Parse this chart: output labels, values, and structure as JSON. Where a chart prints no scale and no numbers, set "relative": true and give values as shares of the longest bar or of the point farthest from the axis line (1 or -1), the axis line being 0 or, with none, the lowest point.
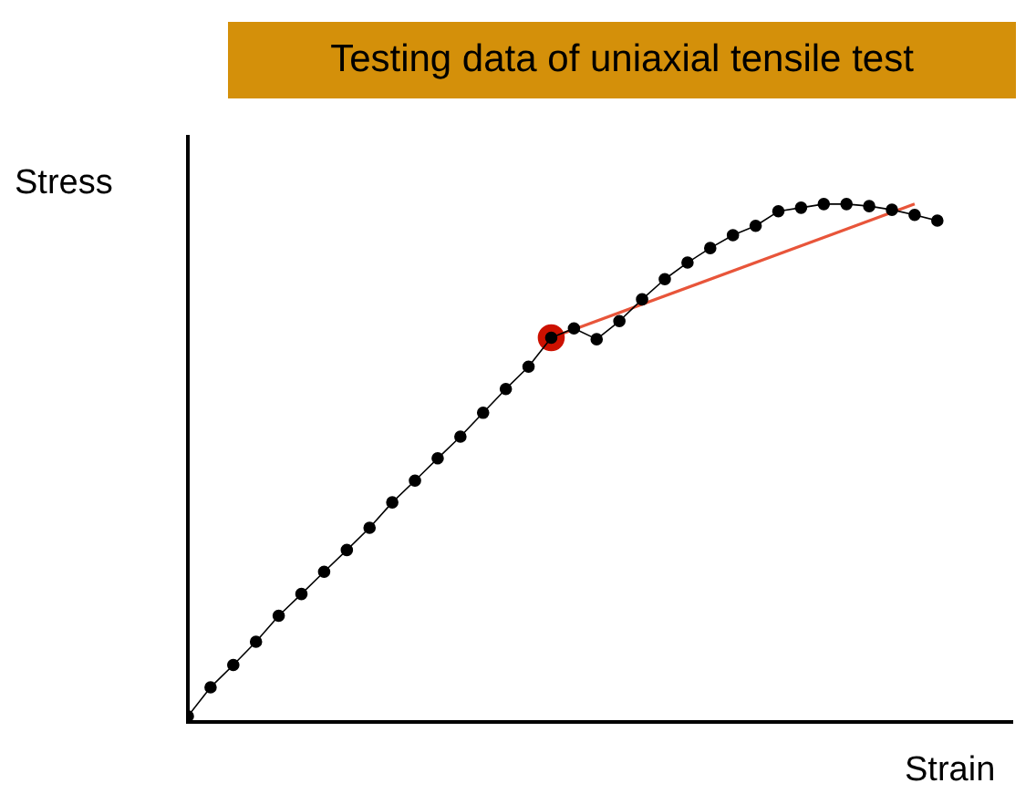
{
  "chart_data": {
    "type": "line",
    "title": "Testing data of uniaxial tensile test",
    "xlabel": "Strain",
    "ylabel": "Stress",
    "relative": true,
    "grid": false,
    "legend": false,
    "line_style": "solid",
    "categories": [
      null,
      null,
      null,
      null,
      null,
      null,
      null,
      null,
      null,
      null,
      null,
      null,
      null,
      null,
      null,
      null,
      null,
      null,
      null,
      null,
      null,
      null,
      null,
      null,
      null,
      null,
      null,
      null,
      null,
      null,
      null,
      null,
      null,
      null
    ],
    "series": [
      {
        "color": "#000000",
        "marker": "circle",
        "values": [
          0.011,
          0.067,
          0.11,
          0.155,
          0.205,
          0.247,
          0.29,
          0.332,
          0.375,
          0.424,
          0.466,
          0.509,
          0.551,
          0.597,
          0.643,
          0.686,
          0.742,
          0.76,
          0.739,
          0.774,
          0.816,
          0.855,
          0.887,
          0.915,
          0.94,
          0.958,
          0.986,
          0.993,
          1.0,
          1.0,
          0.996,
          0.989,
          0.979,
          0.968
        ]
      },
      {
        "color": "#cc1100",
        "marker": "circle",
        "values": [
          null,
          null,
          null,
          null,
          null,
          null,
          null,
          null,
          null,
          null,
          null,
          null,
          null,
          null,
          null,
          null,
          0.742,
          null,
          null,
          null,
          null,
          null,
          null,
          null,
          null,
          null,
          null,
          null,
          null,
          null,
          null,
          null,
          null,
          null
        ]
      },
      {
        "color": "#e8553a",
        "marker": "none",
        "values": [
          null,
          null,
          null,
          null,
          null,
          null,
          null,
          null,
          null,
          null,
          null,
          null,
          null,
          null,
          null,
          null,
          0.742,
          null,
          null,
          null,
          null,
          null,
          null,
          null,
          null,
          null,
          null,
          null,
          null,
          null,
          null,
          null,
          1.0,
          null
        ]
      }
    ]
  }
}
